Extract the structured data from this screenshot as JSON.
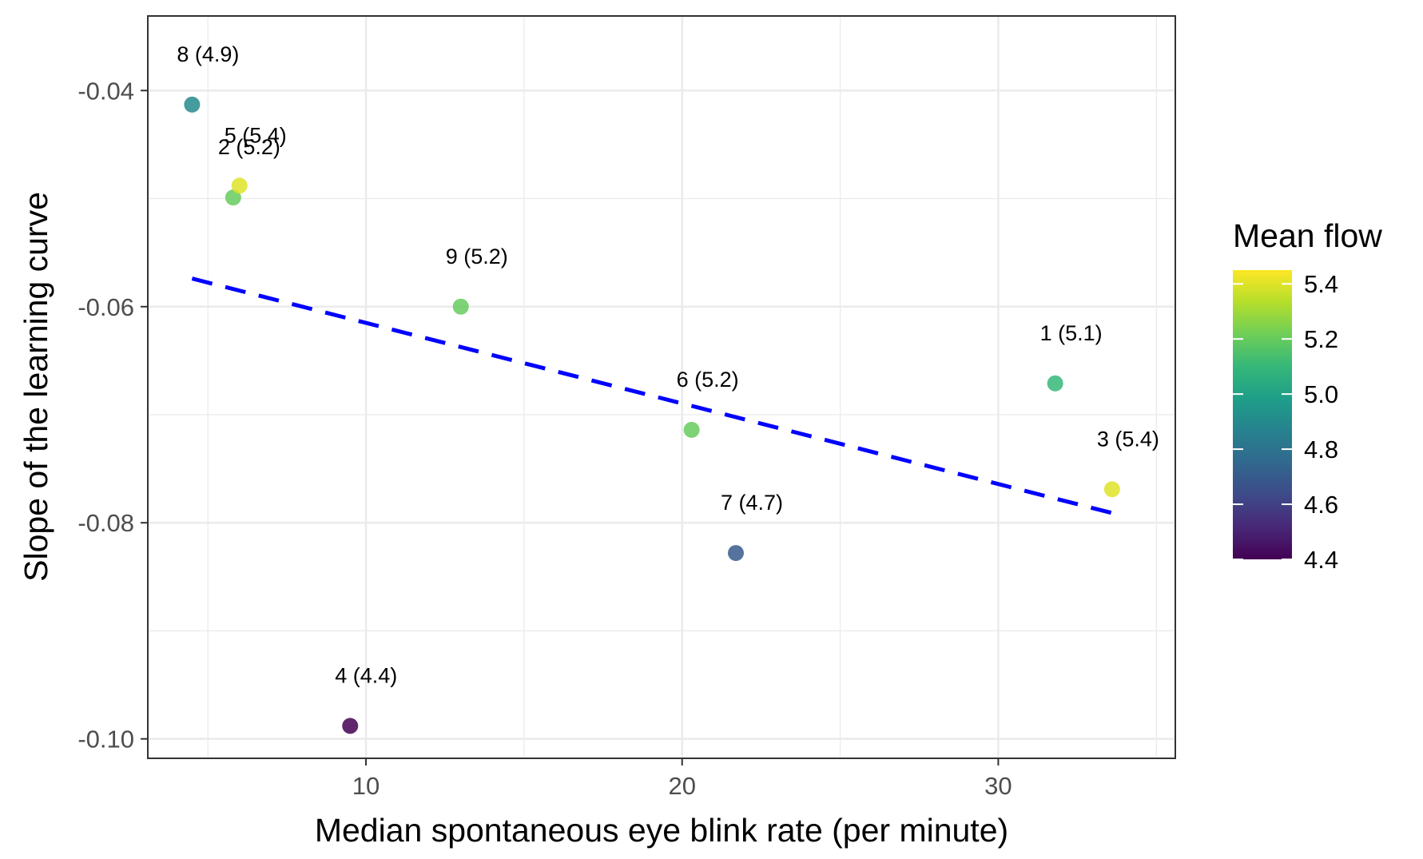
{
  "chart_data": {
    "type": "scatter",
    "xlabel": "Median spontaneous eye blink rate (per minute)",
    "ylabel": "Slope of the learning curve",
    "xlim": [
      3.1,
      35.6
    ],
    "ylim": [
      -0.1018,
      -0.0331
    ],
    "x_ticks": [
      10,
      20,
      30
    ],
    "x_tick_labels": [
      "10",
      "20",
      "30"
    ],
    "y_ticks": [
      -0.04,
      -0.06,
      -0.08,
      -0.1
    ],
    "y_tick_labels": [
      "-0.04",
      "-0.06",
      "-0.08",
      "-0.10"
    ],
    "grid": true,
    "points": [
      {
        "label": "1 (5.1)",
        "x": 31.8,
        "y": -0.0671,
        "flow": 5.1
      },
      {
        "label": "2 (5.2)",
        "x": 5.8,
        "y": -0.0499,
        "flow": 5.2
      },
      {
        "label": "3 (5.4)",
        "x": 33.6,
        "y": -0.0769,
        "flow": 5.4
      },
      {
        "label": "4 (4.4)",
        "x": 9.5,
        "y": -0.0988,
        "flow": 4.4
      },
      {
        "label": "5 (5.4)",
        "x": 6.0,
        "y": -0.0488,
        "flow": 5.4
      },
      {
        "label": "6 (5.2)",
        "x": 20.3,
        "y": -0.0714,
        "flow": 5.2
      },
      {
        "label": "7 (4.7)",
        "x": 21.7,
        "y": -0.0828,
        "flow": 4.7
      },
      {
        "label": "8 (4.9)",
        "x": 4.5,
        "y": -0.0413,
        "flow": 4.9
      },
      {
        "label": "9 (5.2)",
        "x": 13.0,
        "y": -0.06,
        "flow": 5.2
      }
    ],
    "trend_line": {
      "style": "dashed",
      "color": "#0000ff",
      "x": [
        4.5,
        33.6
      ],
      "y": [
        -0.0574,
        -0.0791
      ]
    },
    "legend": {
      "title": "Mean flow",
      "position": "right",
      "range": [
        4.4,
        5.45
      ],
      "ticks": [
        5.4,
        5.2,
        5.0,
        4.8,
        4.6,
        4.4
      ],
      "tick_labels": [
        "5.4",
        "5.2",
        "5.0",
        "4.8",
        "4.6",
        "4.4"
      ],
      "colormap": "viridis",
      "colors": [
        "#440154",
        "#482878",
        "#3e4a89",
        "#31688e",
        "#26828e",
        "#1f9e89",
        "#35b779",
        "#6ece58",
        "#b5de2b",
        "#fde725"
      ]
    }
  }
}
